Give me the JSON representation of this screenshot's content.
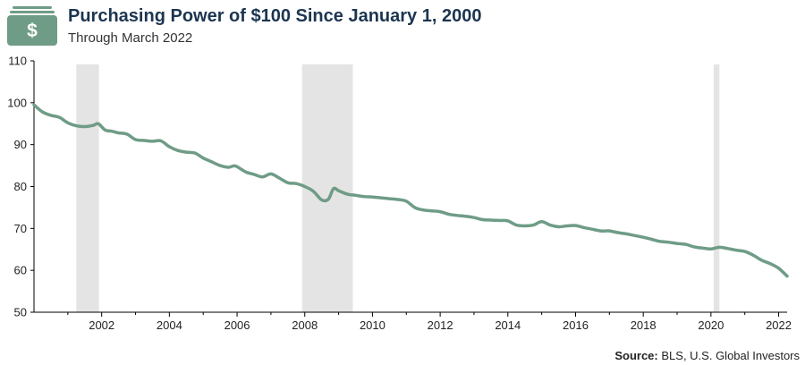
{
  "header": {
    "title": "Purchasing Power of $100 Since January 1, 2000",
    "subtitle": "Through March 2022",
    "icon": "money-bill-icon",
    "icon_symbol": "$"
  },
  "source": {
    "label": "Source:",
    "text": "BLS, U.S. Global Investors"
  },
  "colors": {
    "line": "#6f9c86",
    "recession": "#e4e4e4",
    "title": "#1c3550",
    "icon": "#6f9c86"
  },
  "chart_data": {
    "type": "line",
    "title": "Purchasing Power of $100 Since January 1, 2000",
    "subtitle": "Through March 2022",
    "xlabel": "",
    "ylabel": "",
    "xlim": [
      2000.0,
      2022.25
    ],
    "ylim": [
      50,
      110
    ],
    "yticks": [
      50,
      60,
      70,
      80,
      90,
      100,
      110
    ],
    "xticks": [
      "2002",
      "2004",
      "2006",
      "2008",
      "2010",
      "2012",
      "2014",
      "2016",
      "2018",
      "2020",
      "2022"
    ],
    "recessions": [
      {
        "start": 2001.25,
        "end": 2001.92
      },
      {
        "start": 2007.92,
        "end": 2009.42
      },
      {
        "start": 2020.08,
        "end": 2020.25
      }
    ],
    "series": [
      {
        "name": "Purchasing Power of $100",
        "x": [
          2000.0,
          2000.25,
          2000.5,
          2000.75,
          2001.0,
          2001.25,
          2001.5,
          2001.75,
          2001.9,
          2002.1,
          2002.3,
          2002.5,
          2002.75,
          2003.0,
          2003.25,
          2003.5,
          2003.75,
          2004.0,
          2004.25,
          2004.5,
          2004.75,
          2005.0,
          2005.25,
          2005.5,
          2005.75,
          2005.95,
          2006.25,
          2006.5,
          2006.75,
          2007.0,
          2007.25,
          2007.5,
          2007.75,
          2008.0,
          2008.25,
          2008.5,
          2008.7,
          2008.85,
          2009.0,
          2009.25,
          2009.5,
          2009.75,
          2010.0,
          2010.25,
          2010.5,
          2010.75,
          2011.0,
          2011.25,
          2011.5,
          2011.75,
          2012.0,
          2012.25,
          2012.5,
          2012.75,
          2013.0,
          2013.25,
          2013.5,
          2013.75,
          2014.0,
          2014.25,
          2014.5,
          2014.75,
          2015.0,
          2015.25,
          2015.5,
          2015.75,
          2016.0,
          2016.25,
          2016.5,
          2016.75,
          2017.0,
          2017.25,
          2017.5,
          2017.75,
          2018.0,
          2018.25,
          2018.5,
          2018.75,
          2019.0,
          2019.25,
          2019.5,
          2019.75,
          2020.0,
          2020.25,
          2020.5,
          2020.75,
          2021.0,
          2021.25,
          2021.5,
          2021.75,
          2022.0,
          2022.25
        ],
        "values": [
          99.5,
          97.8,
          97.0,
          96.5,
          95.2,
          94.5,
          94.3,
          94.6,
          95.0,
          93.5,
          93.2,
          92.8,
          92.5,
          91.2,
          91.0,
          90.8,
          90.9,
          89.5,
          88.6,
          88.2,
          88.0,
          86.8,
          85.9,
          85.0,
          84.6,
          84.9,
          83.5,
          82.9,
          82.3,
          83.0,
          82.0,
          80.9,
          80.7,
          80.0,
          78.9,
          76.8,
          77.0,
          79.5,
          79.0,
          78.2,
          77.9,
          77.6,
          77.5,
          77.3,
          77.1,
          76.9,
          76.5,
          75.0,
          74.4,
          74.2,
          74.0,
          73.4,
          73.1,
          72.9,
          72.6,
          72.1,
          72.0,
          71.9,
          71.8,
          70.8,
          70.6,
          70.8,
          71.6,
          70.8,
          70.4,
          70.6,
          70.7,
          70.2,
          69.8,
          69.4,
          69.4,
          69.0,
          68.7,
          68.3,
          67.9,
          67.4,
          66.9,
          66.7,
          66.4,
          66.2,
          65.6,
          65.3,
          65.1,
          65.5,
          65.2,
          64.8,
          64.5,
          63.6,
          62.4,
          61.6,
          60.5,
          58.6
        ]
      }
    ]
  }
}
